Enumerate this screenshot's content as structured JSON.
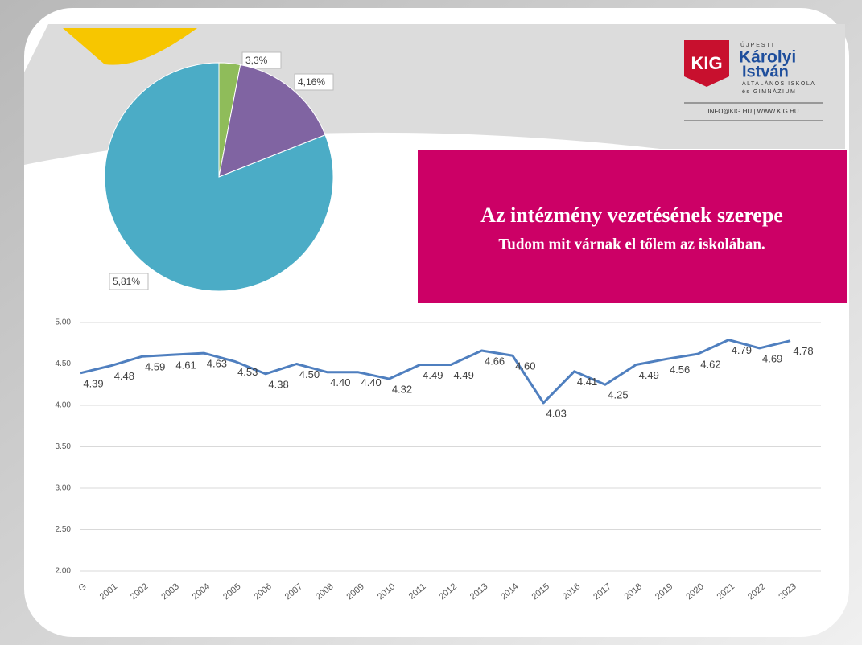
{
  "slide": {
    "title": "Az intézmény vezetésének szerepe",
    "subtitle": "Tudom mit várnak el tőlem az iskolában.",
    "logo": {
      "mark": "KIG",
      "small": "ÚJPESTI",
      "name1": "Károlyi",
      "name2": "István",
      "line1": "ÁLTALÁNOS ISKOLA",
      "line2": "és GIMNÁZIUM",
      "contact": "INFO@KIG.HU  |  WWW.KIG.HU"
    }
  },
  "chart_data": [
    {
      "type": "pie",
      "categories": [
        "3",
        "4",
        "5"
      ],
      "values": [
        3,
        16,
        81
      ],
      "value_labels": [
        "3,3%",
        "4,16%",
        "5,81%"
      ],
      "colors": [
        "#8fbc5a",
        "#8064a2",
        "#4bacc6"
      ]
    },
    {
      "type": "line",
      "categories": [
        "G",
        "2001",
        "2002",
        "2003",
        "2004",
        "2005",
        "2006",
        "2007",
        "2008",
        "2009",
        "2010",
        "2011",
        "2012",
        "2013",
        "2014",
        "2015",
        "2016",
        "2017",
        "2018",
        "2019",
        "2020",
        "2021",
        "2022",
        "2023"
      ],
      "series": [
        {
          "color": "#4f7fbf",
          "values": [
            4.39,
            4.48,
            4.59,
            4.61,
            4.63,
            4.53,
            4.38,
            4.5,
            4.4,
            4.4,
            4.32,
            4.49,
            4.49,
            4.66,
            4.6,
            4.03,
            4.41,
            4.25,
            4.49,
            4.56,
            4.62,
            4.79,
            4.69,
            4.78
          ],
          "value_labels": [
            "4.39",
            "4.48",
            "4.59",
            "4.61",
            "4.63",
            "4.53",
            "4.38",
            "4.50",
            "4.40",
            "4.40",
            "4.32",
            "4.49",
            "4.49",
            "4.66",
            "4.60",
            "4.03",
            "4.41",
            "4.25",
            "4.49",
            "4.56",
            "4.62",
            "4.79",
            "4.69",
            "4.78"
          ]
        }
      ],
      "ylim": [
        2,
        5
      ],
      "yticks": [
        {
          "value": 2,
          "label": "2.00"
        },
        {
          "value": 2.5,
          "label": "2.50"
        },
        {
          "value": 3,
          "label": "3.00"
        },
        {
          "value": 3.5,
          "label": "3.50"
        },
        {
          "value": 4,
          "label": "4.00"
        },
        {
          "value": 4.5,
          "label": "4.50"
        },
        {
          "value": 5,
          "label": "5.00"
        }
      ],
      "grid": true
    }
  ]
}
